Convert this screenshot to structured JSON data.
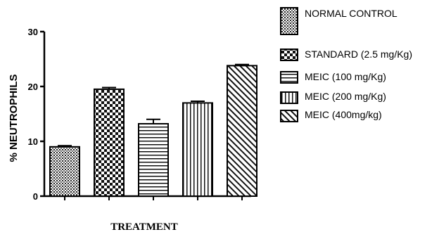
{
  "chart_data": {
    "type": "bar",
    "ylabel": "% NEUTROPHILS",
    "xlabel": "TREATMENT",
    "ylim": [
      0,
      30
    ],
    "yticks": [
      0,
      10,
      20,
      30
    ],
    "grid": false,
    "legend_position": "right",
    "series": [
      {
        "name": "NORMAL CONTROL",
        "value": 9.0,
        "error": 0.2,
        "pattern": "dots"
      },
      {
        "name": "STANDARD (2.5 mg/Kg)",
        "value": 19.5,
        "error": 0.3,
        "pattern": "checker"
      },
      {
        "name": "MEIC (100 mg/Kg)",
        "value": 13.2,
        "error": 0.8,
        "pattern": "hlines"
      },
      {
        "name": "MEIC (200 mg/Kg)",
        "value": 17.0,
        "error": 0.3,
        "pattern": "vlines"
      },
      {
        "name": "MEIC (400mg/kg)",
        "value": 23.8,
        "error": 0.2,
        "pattern": "diag"
      }
    ]
  }
}
